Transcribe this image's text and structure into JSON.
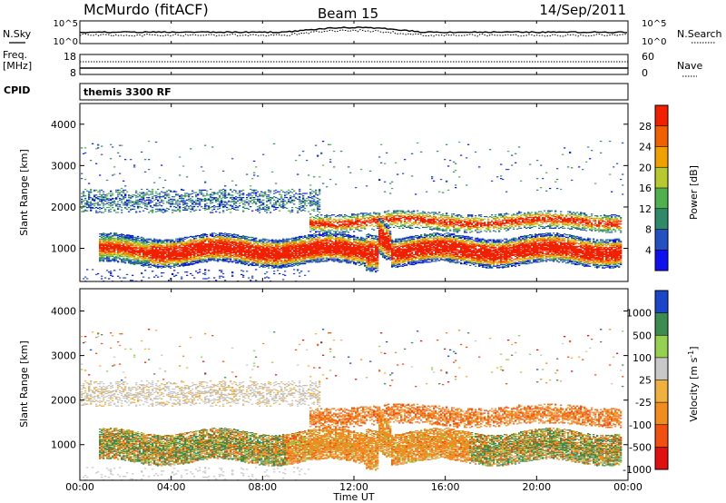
{
  "header": {
    "station": "McMurdo (fitACF)",
    "beam": "Beam 15",
    "date": "14/Sep/2011"
  },
  "noise_panel": {
    "left_label": "N.Sky",
    "right_label": "N.Search",
    "y_top": "10^5",
    "y_bottom": "10^0"
  },
  "freq_panel": {
    "label_line1": "Freq.",
    "label_line2": "[MHz]",
    "y_top": "18",
    "y_bottom": "8",
    "right_label": "Nave",
    "right_top": "60",
    "right_bottom": "0"
  },
  "cpid_panel": {
    "label": "CPID",
    "mode": "themis 3300 RF"
  },
  "colors": {
    "missing": "#ffffff",
    "power_scale": [
      "#1010ee",
      "#2450c0",
      "#2f8a6a",
      "#50b050",
      "#b8c830",
      "#f0a000",
      "#f06000",
      "#f02000"
    ],
    "velocity_scale": [
      "#e01010",
      "#f05010",
      "#f08c20",
      "#f0b040",
      "#c8c8c8",
      "#96d050",
      "#3c8c50",
      "#1c46c8"
    ]
  },
  "chart_data": [
    {
      "type": "heatmap",
      "name": "power",
      "xlabel": "",
      "ylabel": "Slant Range [km]",
      "ylim": [
        200,
        4500
      ],
      "yticks": [
        "1000",
        "2000",
        "3000",
        "4000"
      ],
      "xlim": [
        0,
        24
      ],
      "colorbar_label": "Power [dB]",
      "colorbar_ticks": [
        "4",
        "8",
        "12",
        "16",
        "20",
        "24",
        "28"
      ],
      "bands": [
        {
          "range_km": [
            650,
            1350
          ],
          "x_hours": [
            1.0,
            23.5
          ],
          "level": "28 dB core near 900 km"
        },
        {
          "range_km": [
            1500,
            2050
          ],
          "x_hours": [
            10.0,
            23.7
          ],
          "level": "12-28 dB"
        },
        {
          "range_km": [
            1900,
            2500
          ],
          "x_hours": [
            0.0,
            10.5
          ],
          "level": "4-16 dB"
        }
      ]
    },
    {
      "type": "heatmap",
      "name": "velocity",
      "xlabel": "Time UT",
      "ylabel": "Slant Range [km]",
      "ylim": [
        200,
        4500
      ],
      "yticks": [
        "1000",
        "2000",
        "3000",
        "4000"
      ],
      "xlim": [
        0,
        24
      ],
      "xticks": [
        "00:00",
        "04:00",
        "08:00",
        "12:00",
        "16:00",
        "20:00",
        "00:00"
      ],
      "colorbar_label": "Velocity [m s^-1]",
      "colorbar_ticks": [
        "1000",
        "500",
        "100",
        "25",
        "-25",
        "-100",
        "-500",
        "-1000"
      ],
      "bands": [
        {
          "range_km": [
            650,
            1400
          ],
          "x_hours": [
            1.0,
            23.5
          ],
          "level": "-100 to 100 m/s"
        },
        {
          "range_km": [
            1500,
            2050
          ],
          "x_hours": [
            10.0,
            23.7
          ],
          "level": "-500 to -25 m/s"
        },
        {
          "range_km": [
            1900,
            2500
          ],
          "x_hours": [
            0.0,
            10.5
          ],
          "level": "-25 to 25 m/s"
        }
      ]
    }
  ]
}
